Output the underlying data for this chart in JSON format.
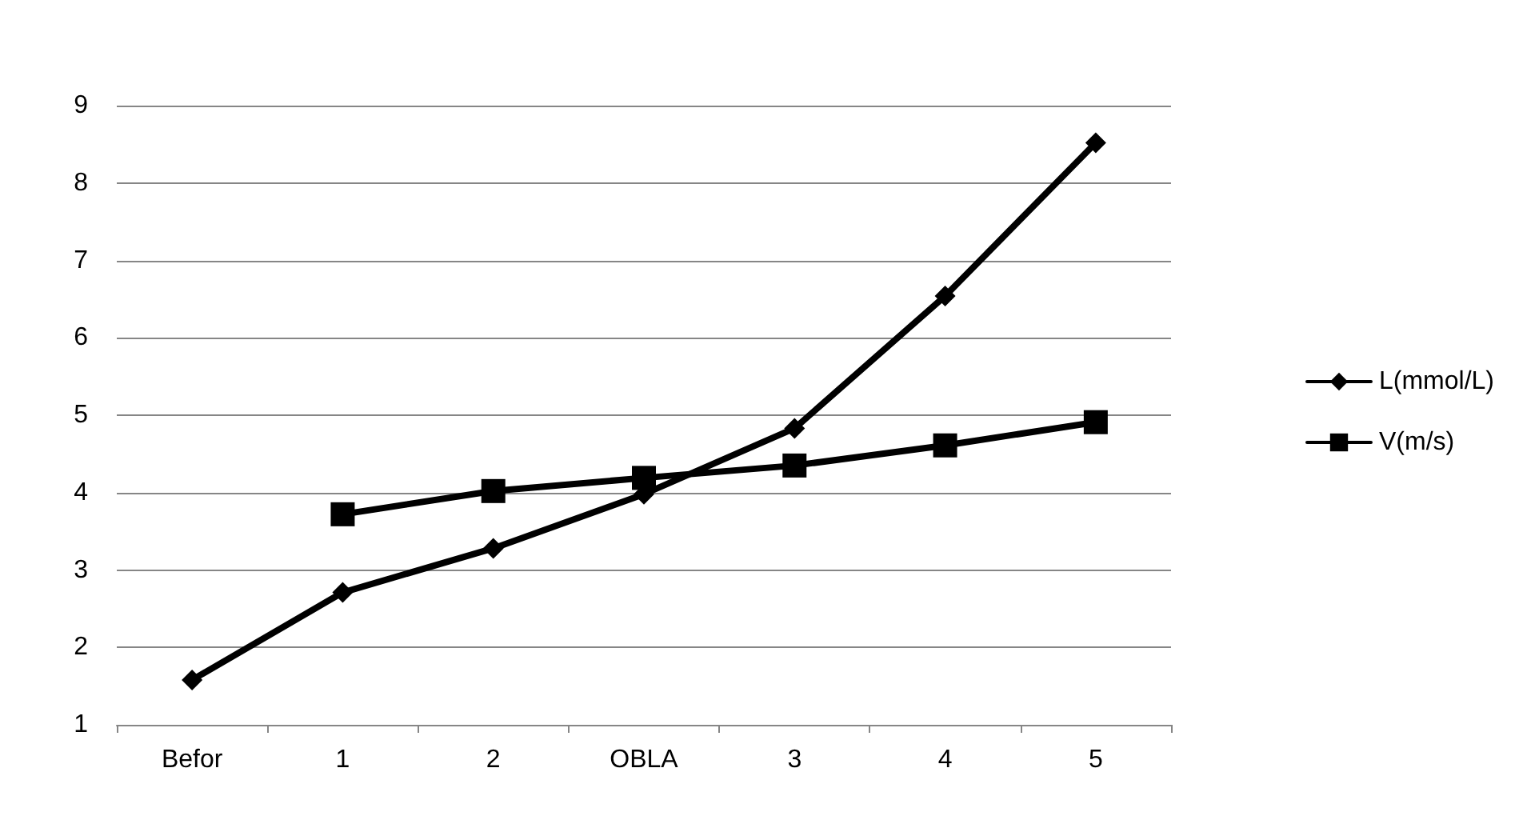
{
  "chart_data": {
    "type": "line",
    "categories": [
      "Befor",
      "1",
      "2",
      "OBLA",
      "3",
      "4",
      "5"
    ],
    "series": [
      {
        "name": "L(mmol/L)",
        "color": "#000000",
        "marker": "diamond",
        "values": [
          1.58,
          2.71,
          3.28,
          3.98,
          4.83,
          6.54,
          8.52
        ]
      },
      {
        "name": "V(m/s)",
        "color": "#000000",
        "marker": "square",
        "values": [
          null,
          3.72,
          4.02,
          4.19,
          4.35,
          4.61,
          4.91
        ]
      }
    ],
    "ylim": [
      1,
      9
    ],
    "yticks": [
      1,
      2,
      3,
      4,
      5,
      6,
      7,
      8,
      9
    ],
    "grid": "y",
    "legend": "right",
    "line_style": "solid"
  }
}
